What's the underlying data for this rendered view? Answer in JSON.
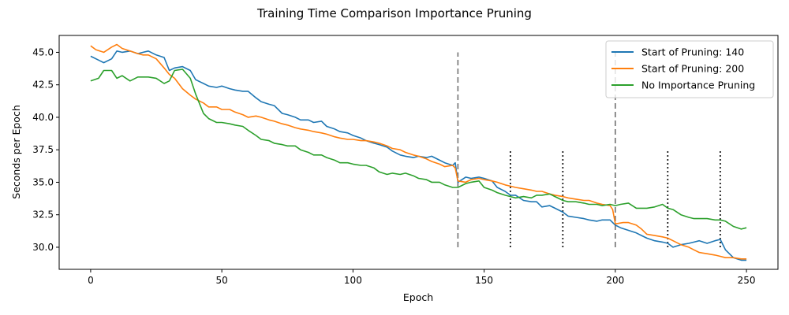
{
  "chart_data": {
    "type": "line",
    "title": "Training Time Comparison Importance Pruning",
    "xlabel": "Epoch",
    "ylabel": "Seconds per Epoch",
    "xlim": [
      -12,
      262
    ],
    "ylim": [
      28.3,
      46.3
    ],
    "xticks": [
      0,
      50,
      100,
      150,
      200,
      250
    ],
    "yticks": [
      30.0,
      32.5,
      35.0,
      37.5,
      40.0,
      42.5,
      45.0
    ],
    "grid": false,
    "legend": "top-right",
    "series": [
      {
        "name": "Start of Pruning: 140",
        "color": "#1f77b4",
        "x": [
          0,
          3,
          5,
          8,
          10,
          12,
          15,
          18,
          20,
          22,
          25,
          28,
          30,
          32,
          35,
          38,
          40,
          43,
          45,
          48,
          50,
          53,
          55,
          58,
          60,
          63,
          65,
          68,
          70,
          73,
          75,
          78,
          80,
          83,
          85,
          88,
          90,
          93,
          95,
          98,
          100,
          103,
          105,
          108,
          110,
          113,
          115,
          118,
          120,
          123,
          125,
          128,
          130,
          133,
          135,
          138,
          139,
          140,
          143,
          145,
          148,
          150,
          153,
          155,
          158,
          160,
          162,
          165,
          168,
          170,
          172,
          175,
          177,
          180,
          182,
          185,
          188,
          190,
          193,
          195,
          198,
          200,
          202,
          205,
          208,
          210,
          212,
          215,
          218,
          220,
          222,
          225,
          228,
          230,
          232,
          235,
          238,
          240,
          242,
          245,
          248,
          250
        ],
        "y": [
          44.7,
          44.4,
          44.2,
          44.5,
          45.1,
          45.0,
          45.1,
          44.9,
          45.0,
          45.1,
          44.8,
          44.6,
          43.6,
          43.8,
          43.9,
          43.6,
          42.9,
          42.6,
          42.4,
          42.3,
          42.4,
          42.2,
          42.1,
          42.0,
          42.0,
          41.5,
          41.2,
          41.0,
          40.9,
          40.3,
          40.2,
          40.0,
          39.8,
          39.8,
          39.6,
          39.7,
          39.3,
          39.1,
          38.9,
          38.8,
          38.6,
          38.4,
          38.2,
          38.0,
          37.9,
          37.7,
          37.4,
          37.1,
          37.0,
          36.9,
          37.0,
          36.9,
          37.0,
          36.7,
          36.5,
          36.3,
          36.5,
          35.0,
          35.4,
          35.3,
          35.4,
          35.3,
          35.1,
          34.6,
          34.3,
          34.0,
          34.0,
          33.6,
          33.5,
          33.5,
          33.1,
          33.2,
          33.0,
          32.7,
          32.4,
          32.3,
          32.2,
          32.1,
          32.0,
          32.1,
          32.1,
          31.7,
          31.5,
          31.3,
          31.1,
          30.9,
          30.7,
          30.5,
          30.4,
          30.3,
          30.0,
          30.2,
          30.3,
          30.4,
          30.5,
          30.3,
          30.5,
          30.6,
          29.8,
          29.2,
          29.0,
          29.0
        ]
      },
      {
        "name": "Start of Pruning: 200",
        "color": "#ff7f0e",
        "x": [
          0,
          2,
          5,
          8,
          10,
          12,
          15,
          18,
          20,
          22,
          25,
          28,
          30,
          32,
          35,
          38,
          40,
          43,
          45,
          48,
          50,
          53,
          55,
          58,
          60,
          63,
          65,
          68,
          70,
          73,
          75,
          78,
          80,
          83,
          85,
          88,
          90,
          93,
          95,
          98,
          100,
          103,
          105,
          108,
          110,
          113,
          115,
          118,
          120,
          123,
          125,
          128,
          130,
          133,
          135,
          138,
          139,
          140,
          143,
          145,
          148,
          150,
          153,
          155,
          158,
          160,
          162,
          165,
          168,
          170,
          172,
          175,
          177,
          180,
          182,
          185,
          188,
          190,
          193,
          195,
          198,
          199,
          200,
          203,
          205,
          208,
          210,
          212,
          215,
          218,
          220,
          222,
          225,
          228,
          230,
          232,
          235,
          238,
          240,
          242,
          245,
          248,
          250
        ],
        "y": [
          45.5,
          45.2,
          45.0,
          45.4,
          45.6,
          45.3,
          45.1,
          44.9,
          44.8,
          44.8,
          44.5,
          43.8,
          43.3,
          43.0,
          42.2,
          41.7,
          41.4,
          41.1,
          40.8,
          40.8,
          40.6,
          40.6,
          40.4,
          40.2,
          40.0,
          40.1,
          40.0,
          39.8,
          39.7,
          39.5,
          39.4,
          39.2,
          39.1,
          39.0,
          38.9,
          38.8,
          38.7,
          38.5,
          38.4,
          38.3,
          38.3,
          38.2,
          38.2,
          38.1,
          38.0,
          37.8,
          37.6,
          37.5,
          37.3,
          37.1,
          37.0,
          36.8,
          36.6,
          36.4,
          36.2,
          36.3,
          36.1,
          35.1,
          35.0,
          35.2,
          35.3,
          35.2,
          35.1,
          35.0,
          34.8,
          34.7,
          34.6,
          34.5,
          34.4,
          34.3,
          34.3,
          34.1,
          34.0,
          33.9,
          33.8,
          33.7,
          33.6,
          33.6,
          33.4,
          33.3,
          33.2,
          32.9,
          31.8,
          31.9,
          31.9,
          31.7,
          31.4,
          31.0,
          30.9,
          30.8,
          30.7,
          30.5,
          30.2,
          30.0,
          29.8,
          29.6,
          29.5,
          29.4,
          29.3,
          29.2,
          29.2,
          29.1,
          29.1
        ]
      },
      {
        "name": "No Importance Pruning",
        "color": "#2ca02c",
        "x": [
          0,
          3,
          5,
          8,
          10,
          12,
          15,
          18,
          20,
          22,
          25,
          28,
          30,
          32,
          35,
          38,
          40,
          43,
          45,
          48,
          50,
          53,
          55,
          58,
          60,
          63,
          65,
          68,
          70,
          73,
          75,
          78,
          80,
          83,
          85,
          88,
          90,
          93,
          95,
          98,
          100,
          103,
          105,
          108,
          110,
          113,
          115,
          118,
          120,
          123,
          125,
          128,
          130,
          133,
          135,
          138,
          140,
          143,
          145,
          148,
          150,
          153,
          155,
          158,
          160,
          162,
          165,
          168,
          170,
          172,
          175,
          177,
          180,
          182,
          185,
          188,
          190,
          193,
          195,
          198,
          200,
          202,
          205,
          208,
          210,
          212,
          215,
          218,
          220,
          222,
          225,
          228,
          230,
          232,
          235,
          238,
          240,
          242,
          245,
          248,
          250
        ],
        "y": [
          42.8,
          43.0,
          43.6,
          43.6,
          43.0,
          43.2,
          42.8,
          43.1,
          43.1,
          43.1,
          43.0,
          42.6,
          42.8,
          43.6,
          43.7,
          43.0,
          41.8,
          40.3,
          39.9,
          39.6,
          39.6,
          39.5,
          39.4,
          39.3,
          39.0,
          38.6,
          38.3,
          38.2,
          38.0,
          37.9,
          37.8,
          37.8,
          37.5,
          37.3,
          37.1,
          37.1,
          36.9,
          36.7,
          36.5,
          36.5,
          36.4,
          36.3,
          36.3,
          36.1,
          35.8,
          35.6,
          35.7,
          35.6,
          35.7,
          35.5,
          35.3,
          35.2,
          35.0,
          35.0,
          34.8,
          34.6,
          34.6,
          34.9,
          35.0,
          35.1,
          34.6,
          34.4,
          34.2,
          34.0,
          33.9,
          33.8,
          33.9,
          33.8,
          34.0,
          34.0,
          34.1,
          33.9,
          33.6,
          33.5,
          33.5,
          33.4,
          33.3,
          33.3,
          33.2,
          33.3,
          33.2,
          33.3,
          33.4,
          33.0,
          33.0,
          33.0,
          33.1,
          33.3,
          33.0,
          32.9,
          32.5,
          32.3,
          32.2,
          32.2,
          32.2,
          32.1,
          32.1,
          32.0,
          31.6,
          31.4,
          31.5
        ]
      }
    ],
    "reference_lines": [
      {
        "x": 140,
        "y0": 30.0,
        "y1": 45.0,
        "style": "dashed",
        "color": "#808080"
      },
      {
        "x": 200,
        "y0": 30.0,
        "y1": 45.0,
        "style": "dashed",
        "color": "#808080"
      },
      {
        "x": 160,
        "y0": 30.0,
        "y1": 37.4,
        "style": "dotted",
        "color": "#000000"
      },
      {
        "x": 180,
        "y0": 30.0,
        "y1": 37.4,
        "style": "dotted",
        "color": "#000000"
      },
      {
        "x": 220,
        "y0": 30.0,
        "y1": 37.4,
        "style": "dotted",
        "color": "#000000"
      },
      {
        "x": 240,
        "y0": 30.0,
        "y1": 37.4,
        "style": "dotted",
        "color": "#000000"
      }
    ]
  }
}
